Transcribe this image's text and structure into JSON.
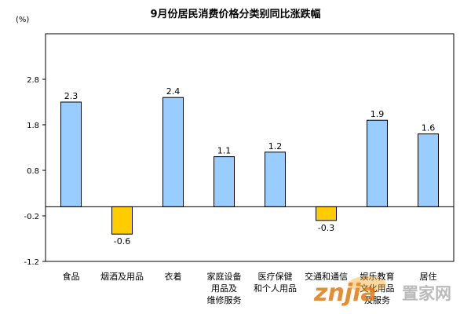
{
  "chart_data": {
    "type": "bar",
    "title": "9月份居民消费价格分类别同比涨跌幅",
    "unit": "(%)",
    "categories": [
      [
        "食品"
      ],
      [
        "烟酒及用品"
      ],
      [
        "衣着"
      ],
      [
        "家庭设备",
        "用品及",
        "维修服务"
      ],
      [
        "医疗保健",
        "和个人用品"
      ],
      [
        "交通和通信"
      ],
      [
        "娱乐教育",
        "文化用品",
        "及服务"
      ],
      [
        "居住"
      ]
    ],
    "values": [
      2.3,
      -0.6,
      2.4,
      1.1,
      1.2,
      -0.3,
      1.9,
      1.6
    ],
    "value_labels": [
      "2.3",
      "-0.6",
      "2.4",
      "1.1",
      "1.2",
      "-0.3",
      "1.9",
      "1.6"
    ],
    "yticks": [
      "2.8",
      "1.8",
      "0.8",
      "-0.2",
      "-1.2"
    ],
    "ylim": [
      -1.2,
      3.8
    ],
    "colors": {
      "positive": "#99ccff",
      "negative": "#ffcc00",
      "outline": "#000000"
    }
  },
  "watermark": {
    "brand": "znjia",
    "text": "置家网"
  }
}
